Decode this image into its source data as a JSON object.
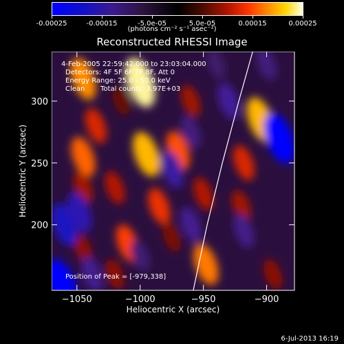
{
  "colorbar": {
    "ticks": [
      "-0.00025",
      "-0.00015",
      "-5.0e-05",
      "5.0e-05",
      "0.00015",
      "0.00025"
    ],
    "unit_label": "(photons cm⁻² s⁻¹ asec⁻²)",
    "range": [
      -0.00025,
      0.00025
    ]
  },
  "annotations": {
    "time_range": "4-Feb-2005 22:59:42.000 to 23:03:04.000",
    "detectors": "Detectors: 4F 5F 6F 7F 8F, Att 0",
    "energy_range": "Energy Range: 25.0 - 50.0 keV",
    "algorithm": "Clean",
    "total_counts": "Total counts: 3.97E+03",
    "peak": "Position of Peak = [-979,338]"
  },
  "footer_date": "6-Jul-2013 16:19",
  "chart_data": {
    "type": "heatmap",
    "title": "Reconstructed RHESSI Image",
    "xlabel": "Heliocentric X (arcsec)",
    "ylabel": "Heliocentric Y (arcsec)",
    "xlim": [
      -1070,
      -878
    ],
    "ylim": [
      147,
      340
    ],
    "xticks": [
      -1050,
      -1000,
      -950,
      -900
    ],
    "yticks": [
      200,
      250,
      300
    ],
    "tick_labels_x": [
      "−1050",
      "−1000",
      "−950",
      "−900"
    ],
    "tick_labels_y": [
      "200",
      "250",
      "300"
    ],
    "peak_position": [
      -979,
      338
    ],
    "features": [
      {
        "x": -1000,
        "y": 315,
        "value": 0.00024
      },
      {
        "x": -1045,
        "y": 318,
        "value": 0.00018
      },
      {
        "x": -1035,
        "y": 280,
        "value": 0.00012
      },
      {
        "x": -1045,
        "y": 255,
        "value": 0.00016
      },
      {
        "x": -1020,
        "y": 230,
        "value": 0.0001
      },
      {
        "x": -1045,
        "y": 230,
        "value": 9e-05
      },
      {
        "x": -995,
        "y": 257,
        "value": 0.0002
      },
      {
        "x": -970,
        "y": 260,
        "value": 0.00015
      },
      {
        "x": -985,
        "y": 215,
        "value": 0.00013
      },
      {
        "x": -1010,
        "y": 185,
        "value": 0.00014
      },
      {
        "x": -1045,
        "y": 180,
        "value": 8e-05
      },
      {
        "x": -950,
        "y": 225,
        "value": 0.0001
      },
      {
        "x": -948,
        "y": 168,
        "value": 0.00017
      },
      {
        "x": -975,
        "y": 190,
        "value": 7e-05
      },
      {
        "x": -1020,
        "y": 160,
        "value": 8e-05
      },
      {
        "x": -905,
        "y": 285,
        "value": 0.0002
      },
      {
        "x": -918,
        "y": 250,
        "value": 0.00012
      },
      {
        "x": -920,
        "y": 215,
        "value": 9e-05
      },
      {
        "x": -895,
        "y": 160,
        "value": 8e-05
      },
      {
        "x": -960,
        "y": 300,
        "value": 9e-05
      },
      {
        "x": -1015,
        "y": 300,
        "value": 6e-05
      },
      {
        "x": -890,
        "y": 270,
        "value": -0.00025
      },
      {
        "x": -1060,
        "y": 200,
        "value": -0.00018
      },
      {
        "x": -1048,
        "y": 210,
        "value": -0.00016
      },
      {
        "x": -1038,
        "y": 160,
        "value": -0.00012
      },
      {
        "x": -1062,
        "y": 152,
        "value": -0.00025
      },
      {
        "x": -975,
        "y": 245,
        "value": -0.00014
      },
      {
        "x": -960,
        "y": 200,
        "value": -0.00012
      },
      {
        "x": -930,
        "y": 300,
        "value": -0.00013
      },
      {
        "x": -918,
        "y": 195,
        "value": -0.00011
      },
      {
        "x": -960,
        "y": 275,
        "value": -0.0001
      },
      {
        "x": -1000,
        "y": 175,
        "value": -9e-05
      },
      {
        "x": -940,
        "y": 330,
        "value": -8e-05
      },
      {
        "x": -900,
        "y": 330,
        "value": -0.0001
      }
    ],
    "limb_curve": [
      [
        -958,
        147
      ],
      [
        -947,
        200
      ],
      [
        -935,
        250
      ],
      [
        -922,
        300
      ],
      [
        -911,
        340
      ]
    ]
  }
}
